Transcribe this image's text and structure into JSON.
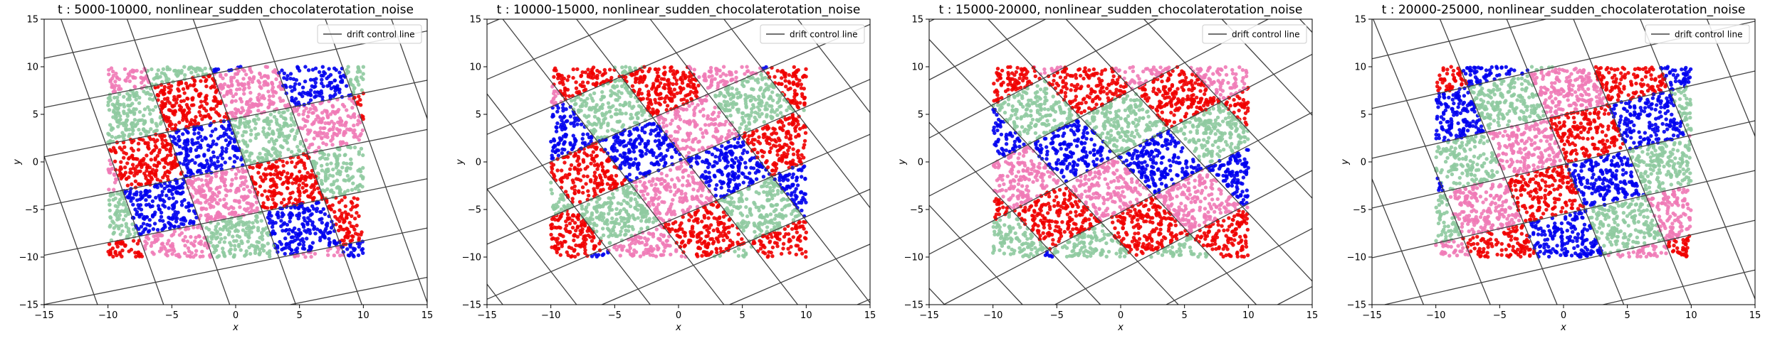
{
  "figure": {
    "name": "drift-figure"
  },
  "chart_data": [
    {
      "type": "scatter",
      "title": "t : 5000-10000, nonlinear_sudden_chocolaterotation_noise",
      "xlabel": "x",
      "ylabel": "y",
      "xlim": [
        -15,
        15
      ],
      "ylim": [
        -15,
        15
      ],
      "xticks": [
        -15,
        -10,
        -5,
        0,
        5,
        10,
        15
      ],
      "yticks": [
        -15,
        -10,
        -5,
        0,
        5,
        10,
        15
      ],
      "rotation_deg": 15,
      "shift": [
        0.8,
        -0.4
      ],
      "grid_spacing": 5,
      "cell_colors": [
        [
          "#8fcaa0",
          "#ef7ab6",
          "#0000ee",
          "#ef0000"
        ],
        [
          "#ef7ab6",
          "#0000ee",
          "#ef0000",
          "#8fcaa0"
        ],
        [
          "#ef0000",
          "#8fcaa0",
          "#ef7ab6",
          "#0000ee"
        ],
        [
          "#0000ee",
          "#ef0000",
          "#8fcaa0",
          "#ef7ab6"
        ]
      ],
      "series": [
        {
          "name": "drift control line",
          "color": "#444444"
        }
      ],
      "legend": {
        "position": "top-right",
        "entries": [
          "drift control line"
        ]
      },
      "grid": false
    },
    {
      "type": "scatter",
      "title": "t : 10000-15000, nonlinear_sudden_chocolaterotation_noise",
      "xlabel": "x",
      "ylabel": "y",
      "xlim": [
        -15,
        15
      ],
      "ylim": [
        -15,
        15
      ],
      "xticks": [
        -15,
        -10,
        -5,
        0,
        5,
        10,
        15
      ],
      "yticks": [
        -15,
        -10,
        -5,
        0,
        5,
        10,
        15
      ],
      "rotation_deg": 30,
      "shift": [
        0.5,
        0.3
      ],
      "grid_spacing": 5,
      "cell_colors": [
        [
          "#ef7ab6",
          "#ef0000",
          "#8fcaa0",
          "#0000ee"
        ],
        [
          "#8fcaa0",
          "#ef7ab6",
          "#0000ee",
          "#ef0000"
        ],
        [
          "#ef0000",
          "#0000ee",
          "#ef7ab6",
          "#8fcaa0"
        ],
        [
          "#0000ee",
          "#8fcaa0",
          "#ef0000",
          "#ef7ab6"
        ]
      ],
      "series": [
        {
          "name": "drift control line",
          "color": "#444444"
        }
      ],
      "legend": {
        "position": "top-right",
        "entries": [
          "drift control line"
        ]
      },
      "grid": false
    },
    {
      "type": "scatter",
      "title": "t : 15000-20000, nonlinear_sudden_chocolaterotation_noise",
      "xlabel": "x",
      "ylabel": "y",
      "xlim": [
        -15,
        15
      ],
      "ylim": [
        -15,
        15
      ],
      "xticks": [
        -15,
        -10,
        -5,
        0,
        5,
        10,
        15
      ],
      "yticks": [
        -15,
        -10,
        -5,
        0,
        5,
        10,
        15
      ],
      "rotation_deg": 35,
      "shift": [
        -0.3,
        0.6
      ],
      "grid_spacing": 5,
      "cell_colors": [
        [
          "#8fcaa0",
          "#ef0000",
          "#ef7ab6",
          "#0000ee"
        ],
        [
          "#ef0000",
          "#ef7ab6",
          "#0000ee",
          "#8fcaa0"
        ],
        [
          "#ef7ab6",
          "#0000ee",
          "#8fcaa0",
          "#ef0000"
        ],
        [
          "#0000ee",
          "#8fcaa0",
          "#ef0000",
          "#ef7ab6"
        ]
      ],
      "series": [
        {
          "name": "drift control line",
          "color": "#444444"
        }
      ],
      "legend": {
        "position": "top-right",
        "entries": [
          "drift control line"
        ]
      },
      "grid": false
    },
    {
      "type": "scatter",
      "title": "t : 20000-25000, nonlinear_sudden_chocolaterotation_noise",
      "xlabel": "x",
      "ylabel": "y",
      "xlim": [
        -15,
        15
      ],
      "ylim": [
        -15,
        15
      ],
      "xticks": [
        -15,
        -10,
        -5,
        0,
        5,
        10,
        15
      ],
      "yticks": [
        -15,
        -10,
        -5,
        0,
        5,
        10,
        15
      ],
      "rotation_deg": 17,
      "shift": [
        0.2,
        -0.2
      ],
      "grid_spacing": 5,
      "cell_colors": [
        [
          "#ef0000",
          "#ef7ab6",
          "#8fcaa0",
          "#0000ee"
        ],
        [
          "#0000ee",
          "#ef0000",
          "#ef7ab6",
          "#8fcaa0"
        ],
        [
          "#8fcaa0",
          "#0000ee",
          "#ef0000",
          "#ef7ab6"
        ],
        [
          "#ef7ab6",
          "#8fcaa0",
          "#0000ee",
          "#ef0000"
        ]
      ],
      "series": [
        {
          "name": "drift control line",
          "color": "#444444"
        }
      ],
      "legend": {
        "position": "top-right",
        "entries": [
          "drift control line"
        ]
      },
      "grid": false
    }
  ]
}
